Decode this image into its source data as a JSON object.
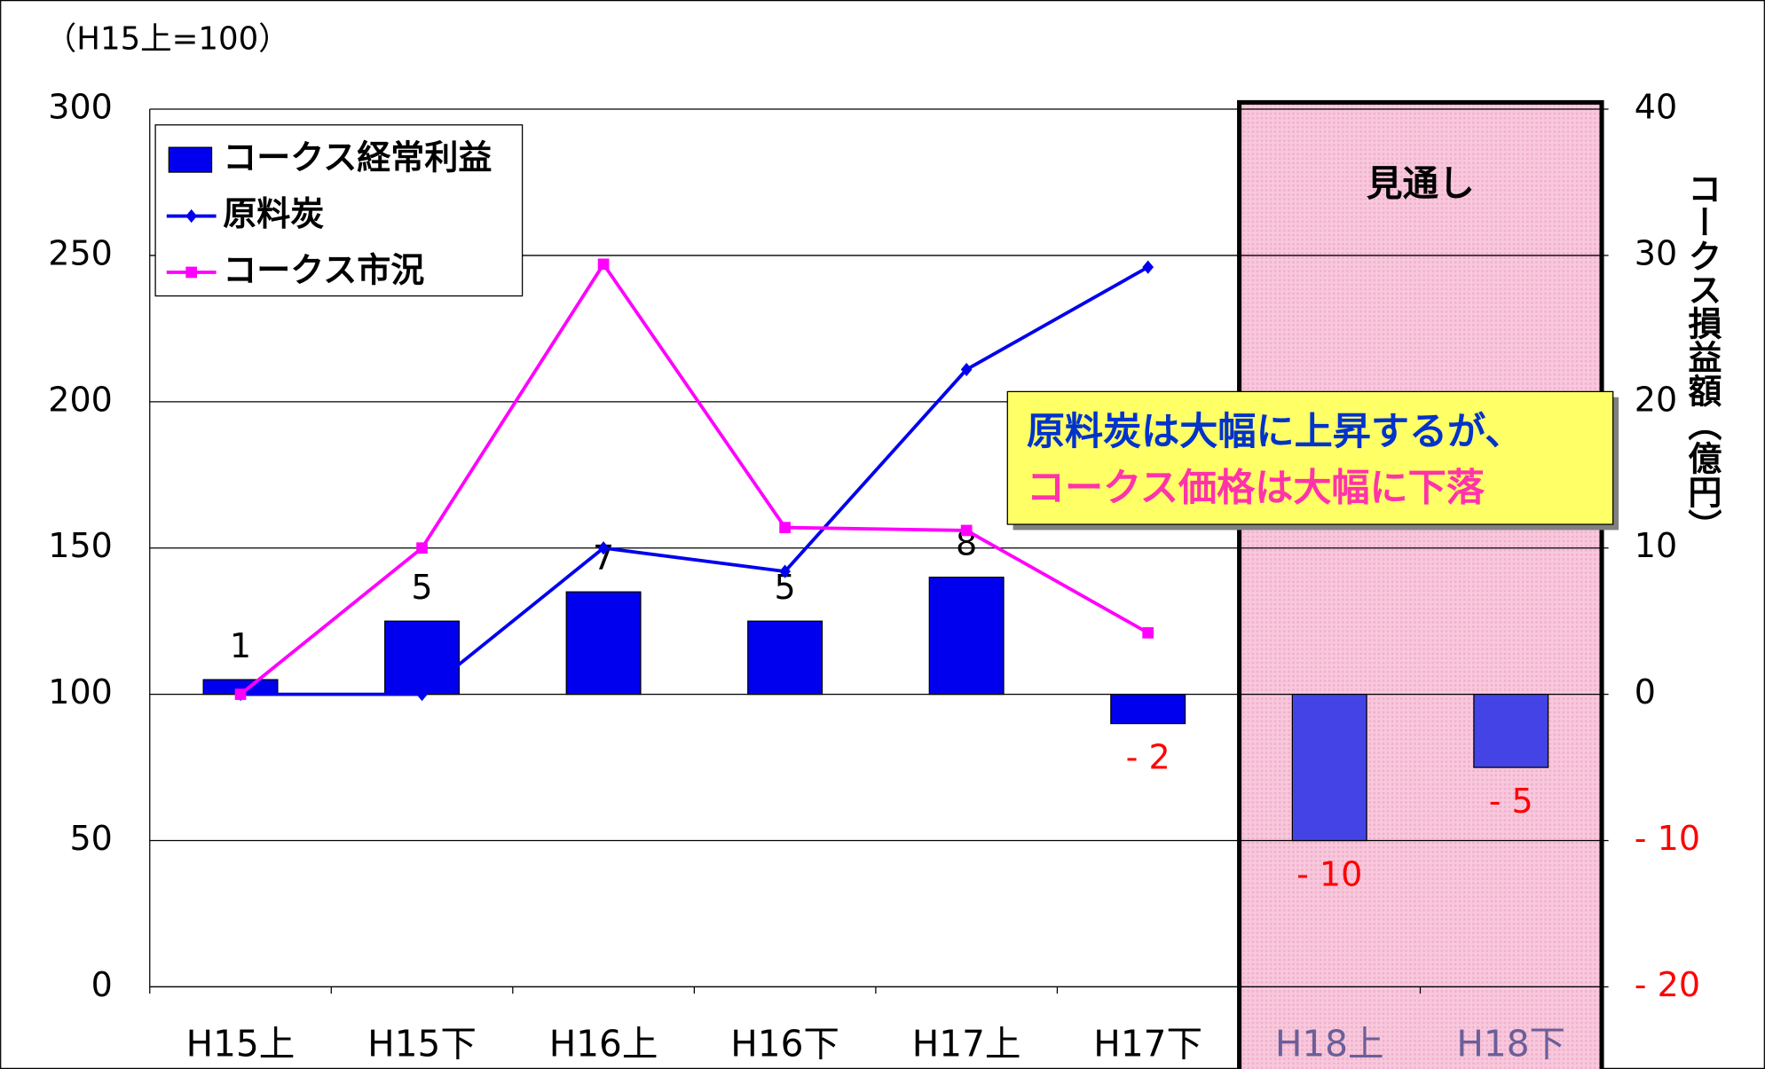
{
  "chart_data": {
    "type": "bar-line",
    "title": "（H15上=100）",
    "y2label": "コークス損益額（億円）",
    "forecast_label": "見通し",
    "annotation": [
      "原料炭は大幅に上昇するが、",
      "コークス価格は大幅に下落"
    ],
    "categories": [
      "H15上",
      "H15下",
      "H16上",
      "H16下",
      "H17上",
      "H17下",
      "H18上",
      "H18下"
    ],
    "ylim": [
      0,
      300
    ],
    "yticks": [
      0,
      50,
      100,
      150,
      200,
      250,
      300
    ],
    "y2lim": [
      -20,
      40
    ],
    "y2ticks": [
      {
        "value": -20,
        "label": "- 20"
      },
      {
        "value": -10,
        "label": "- 10"
      },
      0,
      10,
      20,
      30,
      40
    ],
    "grid": true,
    "legend": "upper left",
    "series": [
      {
        "name": "コークス経常利益",
        "type": "bar",
        "axis": "y2",
        "color": "#0000ee",
        "values": [
          1,
          5,
          7,
          5,
          8,
          -2,
          -10,
          -5
        ],
        "value_labels": [
          "1",
          "5",
          "7",
          "5",
          "8",
          "- 2",
          "- 10",
          "- 5"
        ]
      },
      {
        "name": "原料炭",
        "type": "line",
        "color": "#0000ee",
        "marker": "diamond",
        "values": [
          100,
          100,
          150,
          142,
          211,
          246,
          null,
          null
        ]
      },
      {
        "name": "コークス市況",
        "type": "line",
        "color": "#ff00ff",
        "marker": "square",
        "values": [
          100,
          150,
          247,
          157,
          156,
          121,
          null,
          null
        ]
      }
    ]
  }
}
